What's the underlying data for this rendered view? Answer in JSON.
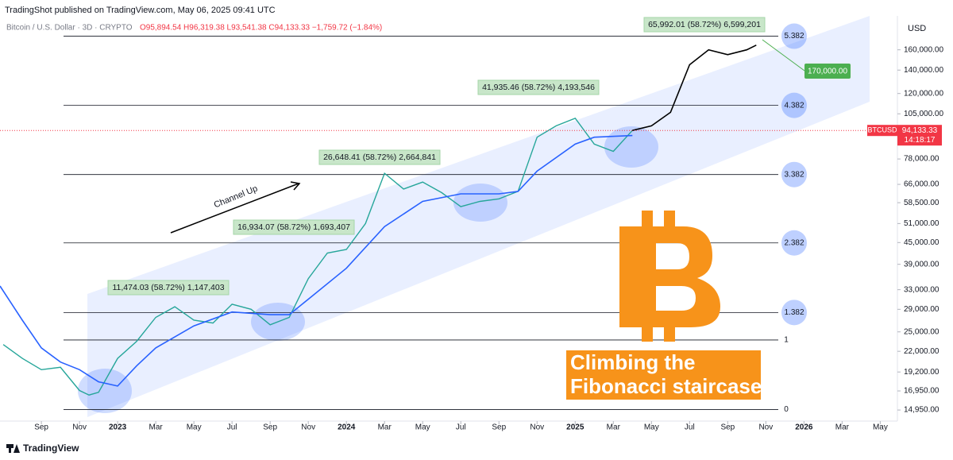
{
  "chart_data": {
    "type": "line",
    "publisher": "TradingShot published on TradingView.com, May 06, 2025 09:41 UTC",
    "symbol": "Bitcoin / U.S. Dollar · 3D · CRYPTO",
    "ohlc": "O95,894.54 H96,319.38 L93,541.38 C94,133.33 −1,759.72 (−1.84%)",
    "currency": "USD",
    "log_scale": true,
    "grid": false,
    "xlim": [
      -2.17,
      44.9
    ],
    "ylim": [
      13900,
      200000
    ],
    "xticks": [
      {
        "value": 0,
        "label": "Sep"
      },
      {
        "value": 2,
        "label": "Nov"
      },
      {
        "value": 4,
        "label": "2023"
      },
      {
        "value": 6,
        "label": "Mar"
      },
      {
        "value": 8,
        "label": "May"
      },
      {
        "value": 10,
        "label": "Jul"
      },
      {
        "value": 12,
        "label": "Sep"
      },
      {
        "value": 14,
        "label": "Nov"
      },
      {
        "value": 16,
        "label": "2024"
      },
      {
        "value": 18,
        "label": "Mar"
      },
      {
        "value": 20,
        "label": "May"
      },
      {
        "value": 22,
        "label": "Jul"
      },
      {
        "value": 24,
        "label": "Sep"
      },
      {
        "value": 26,
        "label": "Nov"
      },
      {
        "value": 28,
        "label": "2025"
      },
      {
        "value": 30,
        "label": "Mar"
      },
      {
        "value": 32,
        "label": "May"
      },
      {
        "value": 34,
        "label": "Jul"
      },
      {
        "value": 36,
        "label": "Sep"
      },
      {
        "value": 38,
        "label": "Nov"
      },
      {
        "value": 40,
        "label": "2026"
      },
      {
        "value": 42,
        "label": "Mar"
      },
      {
        "value": 44,
        "label": "May"
      }
    ],
    "yticks": [
      {
        "value": 160000,
        "label": "160,000.00"
      },
      {
        "value": 140000,
        "label": "140,000.00"
      },
      {
        "value": 120000,
        "label": "120,000.00"
      },
      {
        "value": 105000,
        "label": "105,000.00"
      },
      {
        "value": 78000,
        "label": "78,000.00"
      },
      {
        "value": 66000,
        "label": "66,000.00"
      },
      {
        "value": 58500,
        "label": "58,500.00"
      },
      {
        "value": 51000,
        "label": "51,000.00"
      },
      {
        "value": 45000,
        "label": "45,000.00"
      },
      {
        "value": 39000,
        "label": "39,000.00"
      },
      {
        "value": 33000,
        "label": "33,000.00"
      },
      {
        "value": 29000,
        "label": "29,000.00"
      },
      {
        "value": 25000,
        "label": "25,000.00"
      },
      {
        "value": 22000,
        "label": "22,000.00"
      },
      {
        "value": 19200,
        "label": "19,200.00"
      },
      {
        "value": 16950,
        "label": "16,950.00"
      },
      {
        "value": 14950,
        "label": "14,950.00"
      }
    ],
    "series": [
      {
        "color": "#26a69a",
        "x": [
          -2,
          -1,
          0,
          1,
          2,
          2.5,
          3,
          4,
          5,
          6,
          7,
          8,
          9,
          10,
          11,
          12,
          13,
          14,
          15,
          16,
          17,
          18,
          19,
          20,
          21,
          22,
          23,
          24,
          25,
          26,
          27,
          28,
          29,
          30,
          31
        ],
        "values": [
          23000,
          21000,
          19500,
          19800,
          17000,
          16500,
          16800,
          21000,
          23500,
          27500,
          29500,
          27000,
          26500,
          30000,
          29000,
          26200,
          27500,
          35500,
          42000,
          43000,
          51000,
          71000,
          64000,
          67000,
          62500,
          57000,
          59000,
          60000,
          63000,
          90000,
          97000,
          102000,
          86000,
          82000,
          94100
        ]
      },
      {
        "color": "#2962ff",
        "x": [
          -2.17,
          -1,
          0,
          1,
          2,
          3,
          4,
          5,
          6,
          8,
          10,
          12,
          13,
          14,
          16,
          18,
          20,
          22,
          24,
          25,
          26,
          28,
          29,
          31
        ],
        "values": [
          33800,
          27000,
          22500,
          20500,
          19500,
          18000,
          17500,
          20000,
          22500,
          26000,
          28500,
          28000,
          28000,
          31000,
          38000,
          50000,
          59000,
          62000,
          62000,
          63000,
          72000,
          86000,
          90000,
          91000
        ]
      },
      {
        "color": "#000000",
        "x": [
          31,
          32,
          33,
          34,
          35,
          36,
          37,
          37.5
        ],
        "values": [
          94100,
          97000,
          106000,
          145000,
          160000,
          155000,
          160000,
          165000
        ]
      }
    ],
    "fib_levels": [
      {
        "label": "0",
        "price": 15000
      },
      {
        "label": "1",
        "price": 23700
      },
      {
        "label": "1.382",
        "price": 28400
      },
      {
        "label": "2.382",
        "price": 44900
      },
      {
        "label": "3.382",
        "price": 70400
      },
      {
        "label": "4.382",
        "price": 111000
      },
      {
        "label": "5.382",
        "price": 175000
      }
    ],
    "annotations": [
      "11,474.03 (58.72%) 1,147,403",
      "16,934.07 (58.72%) 1,693,407",
      "26,648.41 (58.72%) 2,664,841",
      "41,935.46 (58.72%) 4,193,546",
      "65,992.01 (58.72%) 6,599,201"
    ],
    "channel_label": "Channel Up",
    "target_label": "170,000.00",
    "last_price": {
      "symbol": "BTCUSD",
      "price": "94,133.33",
      "countdown": "14:18:17"
    },
    "caption": [
      "Climbing the",
      "Fibonacci staircase"
    ],
    "footer": "TradingView"
  }
}
